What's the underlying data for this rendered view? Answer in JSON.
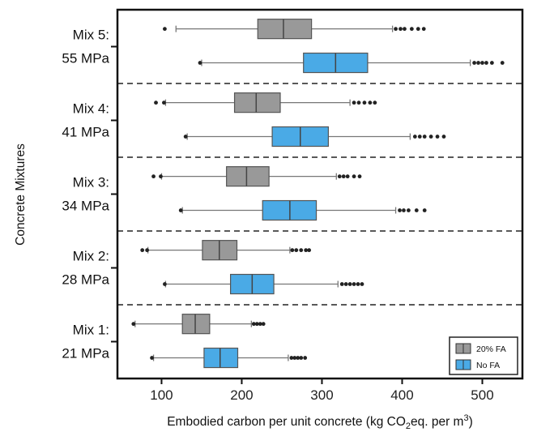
{
  "chart_data": {
    "type": "boxplot",
    "orientation": "horizontal",
    "xlabel": {
      "prefix": "Embodied carbon per unit concrete (kg CO",
      "sub": "2",
      "mid": "eq. per m",
      "sup": "3",
      "suffix": ")"
    },
    "ylabel": "Concrete Mixtures",
    "xlim": [
      45,
      550
    ],
    "xticks": [
      100,
      200,
      300,
      400,
      500
    ],
    "grid": false,
    "legend_position": "bottom-right",
    "series": [
      {
        "name": "20% FA",
        "color": "#999999"
      },
      {
        "name": "No FA",
        "color": "#4aaae6"
      }
    ],
    "groups": [
      {
        "line1": "Mix 5:",
        "line2": "55 MPa",
        "boxes": [
          {
            "series": "20% FA",
            "whisker_low": 118,
            "q1": 220,
            "median": 252,
            "q3": 287,
            "whisker_high": 388,
            "outliers": [
              104,
              392,
              398,
              403,
              412,
              420,
              427
            ]
          },
          {
            "series": "No FA",
            "whisker_low": 150,
            "q1": 277,
            "median": 317,
            "q3": 357,
            "whisker_high": 485,
            "outliers": [
              148,
              490,
              495,
              500,
              505,
              512,
              525
            ]
          }
        ]
      },
      {
        "line1": "Mix 4:",
        "line2": "41 MPa",
        "boxes": [
          {
            "series": "20% FA",
            "whisker_low": 105,
            "q1": 191,
            "median": 218,
            "q3": 248,
            "whisker_high": 335,
            "outliers": [
              93,
              103,
              340,
              346,
              353,
              360,
              366
            ]
          },
          {
            "series": "No FA",
            "whisker_low": 132,
            "q1": 238,
            "median": 273,
            "q3": 308,
            "whisker_high": 410,
            "outliers": [
              130,
              416,
              422,
              428,
              436,
              444,
              452
            ]
          }
        ]
      },
      {
        "line1": "Mix 3:",
        "line2": "34 MPa",
        "boxes": [
          {
            "series": "20% FA",
            "whisker_low": 100,
            "q1": 181,
            "median": 206,
            "q3": 234,
            "whisker_high": 318,
            "outliers": [
              90,
              99,
              322,
              327,
              332,
              340,
              347
            ]
          },
          {
            "series": "No FA",
            "whisker_low": 126,
            "q1": 226,
            "median": 260,
            "q3": 293,
            "whisker_high": 392,
            "outliers": [
              124,
              397,
              402,
              408,
              418,
              428
            ]
          }
        ]
      },
      {
        "line1": "Mix 2:",
        "line2": "28 MPa",
        "boxes": [
          {
            "series": "20% FA",
            "whisker_low": 83,
            "q1": 151,
            "median": 172,
            "q3": 194,
            "whisker_high": 260,
            "outliers": [
              76,
              82,
              263,
              268,
              274,
              280,
              284
            ]
          },
          {
            "series": "No FA",
            "whisker_low": 105,
            "q1": 186,
            "median": 213,
            "q3": 240,
            "whisker_high": 320,
            "outliers": [
              104,
              325,
              330,
              335,
              340,
              345,
              350
            ]
          }
        ]
      },
      {
        "line1": "Mix 1:",
        "line2": "21 MPa",
        "boxes": [
          {
            "series": "20% FA",
            "whisker_low": 67,
            "q1": 126,
            "median": 142,
            "q3": 160,
            "whisker_high": 212,
            "outliers": [
              65,
              215,
              219,
              223,
              227
            ]
          },
          {
            "series": "No FA",
            "whisker_low": 90,
            "q1": 153,
            "median": 173,
            "q3": 195,
            "whisker_high": 258,
            "outliers": [
              88,
              262,
              266,
              270,
              274,
              279
            ]
          }
        ]
      }
    ]
  }
}
